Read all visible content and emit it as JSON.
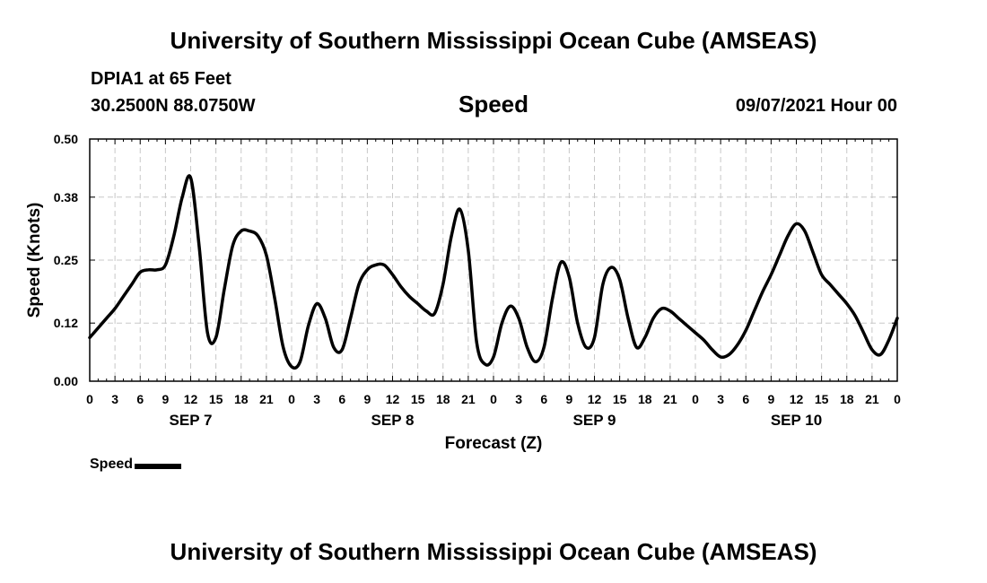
{
  "header": {
    "title": "University of Southern Mississippi Ocean Cube (AMSEAS)",
    "station": "DPIA1 at 65 Feet",
    "coordinates": "30.2500N  88.0750W",
    "variable": "Speed",
    "datetime": "09/07/2021 Hour 00"
  },
  "footer": {
    "title": "University of Southern Mississippi Ocean Cube (AMSEAS)"
  },
  "legend": {
    "label": "Speed"
  },
  "colors": {
    "line": "#000000",
    "grid": "#c8c8c8",
    "background": "#ffffff"
  },
  "chart_data": {
    "type": "line",
    "title": "Speed",
    "xlabel": "Forecast (Z)",
    "ylabel": "Speed (Knots)",
    "ylim": [
      0,
      0.5
    ],
    "y_ticks": [
      "0.00",
      "0.12",
      "0.25",
      "0.38",
      "0.50"
    ],
    "xlim_hours": [
      0,
      96
    ],
    "x_tick_labels": [
      "0",
      "3",
      "6",
      "9",
      "12",
      "15",
      "18",
      "21",
      "0",
      "3",
      "6",
      "9",
      "12",
      "15",
      "18",
      "21",
      "0",
      "3",
      "6",
      "9",
      "12",
      "15",
      "18",
      "21",
      "0",
      "3",
      "6",
      "9",
      "12",
      "15",
      "18",
      "21",
      "0"
    ],
    "day_labels": [
      {
        "label": "SEP 7",
        "hour": 12
      },
      {
        "label": "SEP 8",
        "hour": 36
      },
      {
        "label": "SEP 9",
        "hour": 60
      },
      {
        "label": "SEP 10",
        "hour": 84
      }
    ],
    "grid": true,
    "legend_position": "bottom-left",
    "series": [
      {
        "name": "Speed",
        "x": [
          0,
          1,
          2,
          3,
          4,
          5,
          6,
          7,
          8,
          9,
          10,
          11,
          12,
          13,
          14,
          15,
          16,
          17,
          18,
          19,
          20,
          21,
          22,
          23,
          24,
          25,
          26,
          27,
          28,
          29,
          30,
          31,
          32,
          33,
          34,
          35,
          36,
          37,
          38,
          39,
          40,
          41,
          42,
          43,
          44,
          45,
          46,
          47,
          48,
          49,
          50,
          51,
          52,
          53,
          54,
          55,
          56,
          57,
          58,
          59,
          60,
          61,
          62,
          63,
          64,
          65,
          66,
          67,
          68,
          69,
          70,
          71,
          72,
          73,
          74,
          75,
          76,
          77,
          78,
          79,
          80,
          81,
          82,
          83,
          84,
          85,
          86,
          87,
          88,
          89,
          90,
          91,
          92,
          93,
          94,
          95,
          96
        ],
        "y": [
          0.09,
          0.11,
          0.13,
          0.15,
          0.175,
          0.2,
          0.225,
          0.23,
          0.23,
          0.24,
          0.3,
          0.38,
          0.42,
          0.28,
          0.1,
          0.09,
          0.19,
          0.28,
          0.31,
          0.31,
          0.3,
          0.26,
          0.17,
          0.07,
          0.03,
          0.04,
          0.115,
          0.16,
          0.13,
          0.07,
          0.065,
          0.13,
          0.2,
          0.23,
          0.24,
          0.24,
          0.22,
          0.195,
          0.175,
          0.16,
          0.145,
          0.14,
          0.2,
          0.3,
          0.355,
          0.27,
          0.08,
          0.035,
          0.05,
          0.12,
          0.155,
          0.13,
          0.07,
          0.04,
          0.07,
          0.17,
          0.245,
          0.215,
          0.12,
          0.07,
          0.09,
          0.2,
          0.235,
          0.21,
          0.13,
          0.07,
          0.09,
          0.13,
          0.15,
          0.145,
          0.13,
          0.115,
          0.1,
          0.085,
          0.065,
          0.05,
          0.055,
          0.075,
          0.105,
          0.145,
          0.185,
          0.22,
          0.26,
          0.3,
          0.325,
          0.31,
          0.265,
          0.22,
          0.2,
          0.18,
          0.16,
          0.135,
          0.1,
          0.065,
          0.055,
          0.085,
          0.13
        ]
      }
    ]
  }
}
